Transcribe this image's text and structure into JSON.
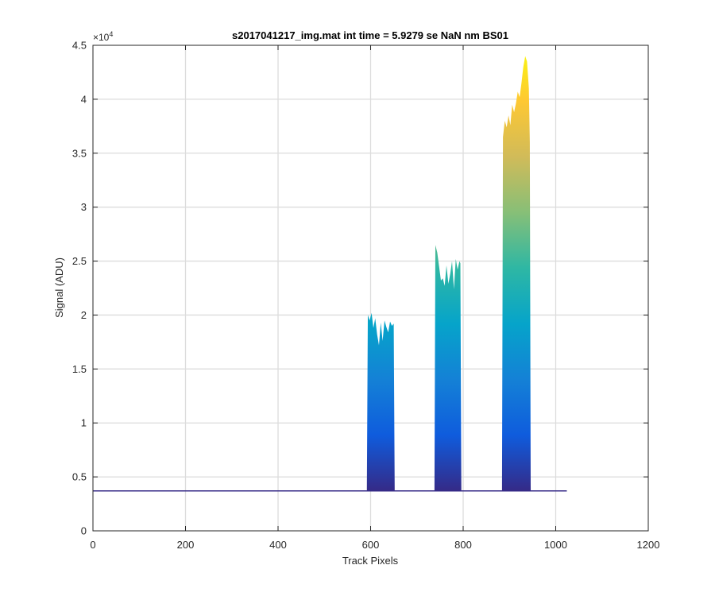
{
  "chart_data": {
    "type": "area",
    "title": "s2017041217_img.mat int time = 5.9279 se  NaN nm BS01",
    "xlabel": "Track Pixels",
    "ylabel": "Signal (ADU)",
    "xlim": [
      0,
      1200
    ],
    "ylim": [
      0,
      45000
    ],
    "x_ticks": [
      0,
      200,
      400,
      600,
      800,
      1000,
      1200
    ],
    "x_tick_labels": [
      "0",
      "200",
      "400",
      "600",
      "800",
      "1000",
      "1200"
    ],
    "y_ticks": [
      0,
      5000,
      10000,
      15000,
      20000,
      25000,
      30000,
      35000,
      40000,
      45000
    ],
    "y_tick_labels": [
      "0",
      "0.5",
      "1",
      "1.5",
      "2",
      "2.5",
      "3",
      "3.5",
      "4",
      "4.5"
    ],
    "y_exponent_label": "×10",
    "y_exponent_power": "4",
    "grid": true,
    "colormap": "parula",
    "colormap_stops": [
      "#352a87",
      "#0f5cdd",
      "#1481d6",
      "#06a4ca",
      "#2eb7a4",
      "#87bf77",
      "#d1bb59",
      "#fec832",
      "#f9fb0e"
    ],
    "baseline": 3700,
    "x_end": 1024,
    "peaks": [
      {
        "x_start": 592,
        "x_end": 652,
        "profile": [
          [
            592,
            3900
          ],
          [
            594,
            20000
          ],
          [
            598,
            19500
          ],
          [
            602,
            20200
          ],
          [
            606,
            18800
          ],
          [
            610,
            19700
          ],
          [
            614,
            18200
          ],
          [
            618,
            17200
          ],
          [
            622,
            19300
          ],
          [
            626,
            17600
          ],
          [
            630,
            19500
          ],
          [
            634,
            18900
          ],
          [
            638,
            18400
          ],
          [
            642,
            19400
          ],
          [
            646,
            19000
          ],
          [
            650,
            19200
          ],
          [
            652,
            3900
          ]
        ]
      },
      {
        "x_start": 738,
        "x_end": 796,
        "profile": [
          [
            738,
            3900
          ],
          [
            740,
            26500
          ],
          [
            744,
            25800
          ],
          [
            748,
            24500
          ],
          [
            752,
            23200
          ],
          [
            756,
            23400
          ],
          [
            760,
            22700
          ],
          [
            764,
            24600
          ],
          [
            768,
            22900
          ],
          [
            772,
            23800
          ],
          [
            776,
            25000
          ],
          [
            780,
            22400
          ],
          [
            784,
            25200
          ],
          [
            788,
            24200
          ],
          [
            792,
            25000
          ],
          [
            794,
            24800
          ],
          [
            796,
            3900
          ]
        ]
      },
      {
        "x_start": 884,
        "x_end": 946,
        "profile": [
          [
            884,
            4000
          ],
          [
            886,
            36500
          ],
          [
            890,
            38000
          ],
          [
            894,
            37400
          ],
          [
            898,
            38500
          ],
          [
            902,
            37600
          ],
          [
            906,
            39500
          ],
          [
            910,
            38800
          ],
          [
            914,
            39600
          ],
          [
            918,
            40700
          ],
          [
            922,
            40200
          ],
          [
            926,
            41500
          ],
          [
            930,
            43000
          ],
          [
            934,
            44000
          ],
          [
            938,
            43500
          ],
          [
            942,
            41000
          ],
          [
            944,
            36000
          ],
          [
            946,
            4200
          ]
        ]
      }
    ]
  }
}
